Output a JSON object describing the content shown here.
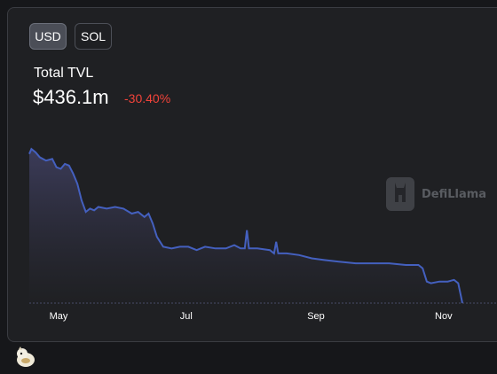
{
  "currency_toggle": {
    "options": [
      {
        "label": "USD",
        "active": true
      },
      {
        "label": "SOL",
        "active": false
      }
    ]
  },
  "summary": {
    "label": "Total TVL",
    "value": "$436.1m",
    "change": "-30.40%",
    "change_color": "#f2433a"
  },
  "watermark": {
    "text": "DefiLlama"
  },
  "colors": {
    "line": "#4460bf",
    "area_top": "#3d3d5c",
    "area_bottom": "#1f2023",
    "axis_text": "#ffffff"
  },
  "chart_data": {
    "type": "area",
    "title": "",
    "xlabel": "",
    "ylabel": "",
    "x_tick_labels": [
      "May",
      "Jul",
      "Sep",
      "Nov"
    ],
    "x_range": [
      "2023-04-17",
      "2023-11-10"
    ],
    "y_axis_labels_shown": false,
    "grid": false,
    "series": [
      {
        "values_normalized_note": "relative TVL level, 1.0 = peak",
        "points": [
          [
            "2023-04-17",
            0.9
          ],
          [
            "2023-04-18",
            0.93
          ],
          [
            "2023-04-20",
            0.91
          ],
          [
            "2023-04-22",
            0.88
          ],
          [
            "2023-04-25",
            0.86
          ],
          [
            "2023-04-28",
            0.87
          ],
          [
            "2023-04-30",
            0.82
          ],
          [
            "2023-05-02",
            0.81
          ],
          [
            "2023-05-04",
            0.84
          ],
          [
            "2023-05-06",
            0.83
          ],
          [
            "2023-05-08",
            0.78
          ],
          [
            "2023-05-10",
            0.72
          ],
          [
            "2023-05-12",
            0.62
          ],
          [
            "2023-05-14",
            0.55
          ],
          [
            "2023-05-16",
            0.57
          ],
          [
            "2023-05-18",
            0.56
          ],
          [
            "2023-05-20",
            0.58
          ],
          [
            "2023-05-24",
            0.57
          ],
          [
            "2023-05-28",
            0.58
          ],
          [
            "2023-06-01",
            0.57
          ],
          [
            "2023-06-05",
            0.54
          ],
          [
            "2023-06-08",
            0.55
          ],
          [
            "2023-06-11",
            0.52
          ],
          [
            "2023-06-13",
            0.54
          ],
          [
            "2023-06-15",
            0.48
          ],
          [
            "2023-06-17",
            0.4
          ],
          [
            "2023-06-20",
            0.34
          ],
          [
            "2023-06-24",
            0.33
          ],
          [
            "2023-06-28",
            0.34
          ],
          [
            "2023-07-02",
            0.34
          ],
          [
            "2023-07-06",
            0.32
          ],
          [
            "2023-07-10",
            0.34
          ],
          [
            "2023-07-15",
            0.33
          ],
          [
            "2023-07-20",
            0.33
          ],
          [
            "2023-07-24",
            0.35
          ],
          [
            "2023-07-27",
            0.33
          ],
          [
            "2023-07-29",
            0.33
          ],
          [
            "2023-07-30",
            0.44
          ],
          [
            "2023-07-31",
            0.33
          ],
          [
            "2023-08-04",
            0.33
          ],
          [
            "2023-08-10",
            0.32
          ],
          [
            "2023-08-12",
            0.3
          ],
          [
            "2023-08-13",
            0.37
          ],
          [
            "2023-08-14",
            0.3
          ],
          [
            "2023-08-18",
            0.3
          ],
          [
            "2023-08-24",
            0.29
          ],
          [
            "2023-08-30",
            0.27
          ],
          [
            "2023-09-05",
            0.26
          ],
          [
            "2023-09-12",
            0.25
          ],
          [
            "2023-09-20",
            0.24
          ],
          [
            "2023-09-28",
            0.24
          ],
          [
            "2023-10-06",
            0.24
          ],
          [
            "2023-10-14",
            0.23
          ],
          [
            "2023-10-20",
            0.23
          ],
          [
            "2023-10-22",
            0.21
          ],
          [
            "2023-10-24",
            0.13
          ],
          [
            "2023-10-26",
            0.12
          ],
          [
            "2023-10-30",
            0.13
          ],
          [
            "2023-11-03",
            0.13
          ],
          [
            "2023-11-06",
            0.14
          ],
          [
            "2023-11-08",
            0.12
          ],
          [
            "2023-11-10",
            0.0
          ]
        ]
      }
    ]
  }
}
